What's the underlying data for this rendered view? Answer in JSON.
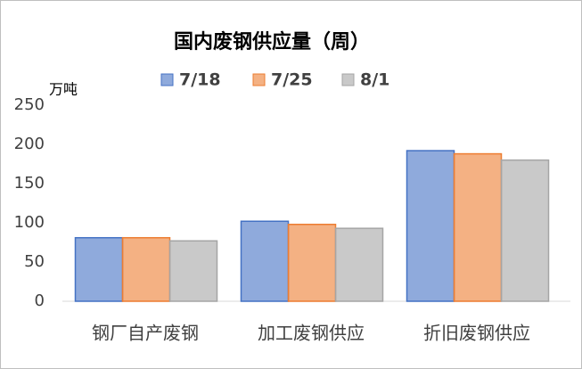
{
  "chart_data": {
    "type": "bar",
    "title": "国内废钢供应量（周）",
    "y_label": "万吨",
    "categories": [
      "钢厂自产废钢",
      "加工废钢供应",
      "折旧废钢供应"
    ],
    "series": [
      {
        "name": "7/18",
        "color": "#4472c4",
        "values": [
          81,
          102,
          192
        ]
      },
      {
        "name": "7/25",
        "color": "#ed7d31",
        "values": [
          81,
          98,
          188
        ]
      },
      {
        "name": "8/1",
        "color": "#a5a5a5",
        "values": [
          77,
          93,
          180
        ]
      }
    ],
    "ylim": [
      0,
      250
    ],
    "yticks": [
      0,
      50,
      100,
      150,
      200,
      250
    ],
    "grid": false
  }
}
